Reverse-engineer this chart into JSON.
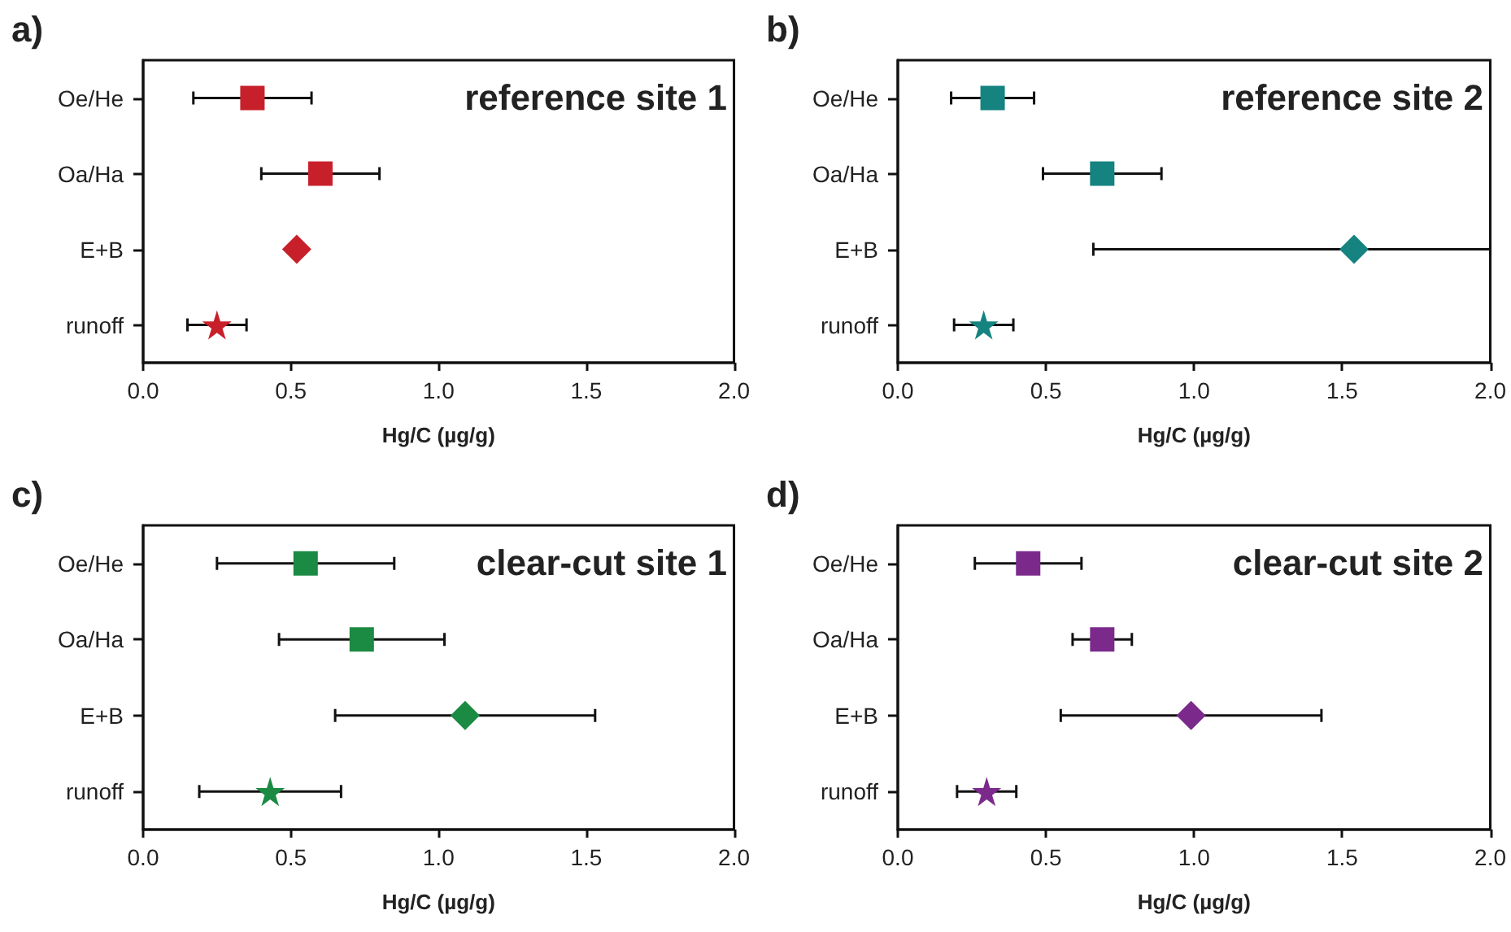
{
  "chart_data": [
    {
      "type": "scatter",
      "title": "reference site 1",
      "annotations": [
        "a)"
      ],
      "orientation": "horizontal",
      "categories": [
        "Oe/He",
        "Oa/Ha",
        "E+B",
        "runoff"
      ],
      "xlabel": "Hg/C (µg/g)",
      "xlim": [
        0,
        2
      ],
      "xticks": [
        {
          "value": 0,
          "label": "0.0"
        },
        {
          "value": 0.5,
          "label": "0.5"
        },
        {
          "value": 1,
          "label": "1.0"
        },
        {
          "value": 1.5,
          "label": "1.5"
        },
        {
          "value": 2,
          "label": "2.0"
        }
      ],
      "grid": false,
      "series": [
        {
          "color": "#c8202a",
          "marker": "square",
          "values": [
            0.37,
            null,
            null,
            null
          ],
          "errors": [
            [
              0.17,
              0.57
            ],
            null,
            null,
            null
          ]
        },
        {
          "color": "#c8202a",
          "marker": "square",
          "values": [
            null,
            0.6,
            null,
            null
          ],
          "errors": [
            null,
            [
              0.4,
              0.8
            ],
            null,
            null
          ]
        },
        {
          "color": "#c8202a",
          "marker": "diamond",
          "values": [
            null,
            null,
            0.52,
            null
          ]
        },
        {
          "color": "#c8202a",
          "marker": "star",
          "values": [
            null,
            null,
            null,
            0.25
          ],
          "errors": [
            null,
            null,
            null,
            [
              0.15,
              0.35
            ]
          ]
        }
      ]
    },
    {
      "type": "scatter",
      "title": "reference site 2",
      "annotations": [
        "b)"
      ],
      "orientation": "horizontal",
      "categories": [
        "Oe/He",
        "Oa/Ha",
        "E+B",
        "runoff"
      ],
      "xlabel": "Hg/C (µg/g)",
      "xlim": [
        0,
        2
      ],
      "xticks": [
        {
          "value": 0,
          "label": "0.0"
        },
        {
          "value": 0.5,
          "label": "0.5"
        },
        {
          "value": 1,
          "label": "1.0"
        },
        {
          "value": 1.5,
          "label": "1.5"
        },
        {
          "value": 2,
          "label": "2.0"
        }
      ],
      "grid": false,
      "series": [
        {
          "color": "#15837f",
          "marker": "square",
          "values": [
            0.32,
            null,
            null,
            null
          ],
          "errors": [
            [
              0.18,
              0.46
            ],
            null,
            null,
            null
          ]
        },
        {
          "color": "#15837f",
          "marker": "square",
          "values": [
            null,
            0.69,
            null,
            null
          ],
          "errors": [
            null,
            [
              0.49,
              0.89
            ],
            null,
            null
          ]
        },
        {
          "color": "#15837f",
          "marker": "diamond",
          "values": [
            null,
            null,
            1.54,
            null
          ],
          "errors": [
            null,
            null,
            [
              0.66,
              2.0
            ],
            null
          ]
        },
        {
          "color": "#15837f",
          "marker": "star",
          "values": [
            null,
            null,
            null,
            0.29
          ],
          "errors": [
            null,
            null,
            null,
            [
              0.19,
              0.39
            ]
          ]
        }
      ]
    },
    {
      "type": "scatter",
      "title": "clear-cut site 1",
      "annotations": [
        "c)"
      ],
      "orientation": "horizontal",
      "categories": [
        "Oe/He",
        "Oa/Ha",
        "E+B",
        "runoff"
      ],
      "xlabel": "Hg/C (µg/g)",
      "xlim": [
        0,
        2
      ],
      "xticks": [
        {
          "value": 0,
          "label": "0.0"
        },
        {
          "value": 0.5,
          "label": "0.5"
        },
        {
          "value": 1,
          "label": "1.0"
        },
        {
          "value": 1.5,
          "label": "1.5"
        },
        {
          "value": 2,
          "label": "2.0"
        }
      ],
      "grid": false,
      "series": [
        {
          "color": "#1b8a43",
          "marker": "square",
          "values": [
            0.55,
            null,
            null,
            null
          ],
          "errors": [
            [
              0.25,
              0.85
            ],
            null,
            null,
            null
          ]
        },
        {
          "color": "#1b8a43",
          "marker": "square",
          "values": [
            null,
            0.74,
            null,
            null
          ],
          "errors": [
            null,
            [
              0.46,
              1.02
            ],
            null,
            null
          ]
        },
        {
          "color": "#1b8a43",
          "marker": "diamond",
          "values": [
            null,
            null,
            1.09,
            null
          ],
          "errors": [
            null,
            null,
            [
              0.65,
              1.53
            ],
            null
          ]
        },
        {
          "color": "#1b8a43",
          "marker": "star",
          "values": [
            null,
            null,
            null,
            0.43
          ],
          "errors": [
            null,
            null,
            null,
            [
              0.19,
              0.67
            ]
          ]
        }
      ]
    },
    {
      "type": "scatter",
      "title": "clear-cut site 2",
      "annotations": [
        "d)"
      ],
      "orientation": "horizontal",
      "categories": [
        "Oe/He",
        "Oa/Ha",
        "E+B",
        "runoff"
      ],
      "xlabel": "Hg/C (µg/g)",
      "xlim": [
        0,
        2
      ],
      "xticks": [
        {
          "value": 0,
          "label": "0.0"
        },
        {
          "value": 0.5,
          "label": "0.5"
        },
        {
          "value": 1,
          "label": "1.0"
        },
        {
          "value": 1.5,
          "label": "1.5"
        },
        {
          "value": 2,
          "label": "2.0"
        }
      ],
      "grid": false,
      "series": [
        {
          "color": "#7b2a8c",
          "marker": "square",
          "values": [
            0.44,
            null,
            null,
            null
          ],
          "errors": [
            [
              0.26,
              0.62
            ],
            null,
            null,
            null
          ]
        },
        {
          "color": "#7b2a8c",
          "marker": "square",
          "values": [
            null,
            0.69,
            null,
            null
          ],
          "errors": [
            null,
            [
              0.59,
              0.79
            ],
            null,
            null
          ]
        },
        {
          "color": "#7b2a8c",
          "marker": "diamond",
          "values": [
            null,
            null,
            0.99,
            null
          ],
          "errors": [
            null,
            null,
            [
              0.55,
              1.43
            ],
            null
          ]
        },
        {
          "color": "#7b2a8c",
          "marker": "star",
          "values": [
            null,
            null,
            null,
            0.3
          ],
          "errors": [
            null,
            null,
            null,
            [
              0.2,
              0.4
            ]
          ]
        }
      ]
    }
  ]
}
